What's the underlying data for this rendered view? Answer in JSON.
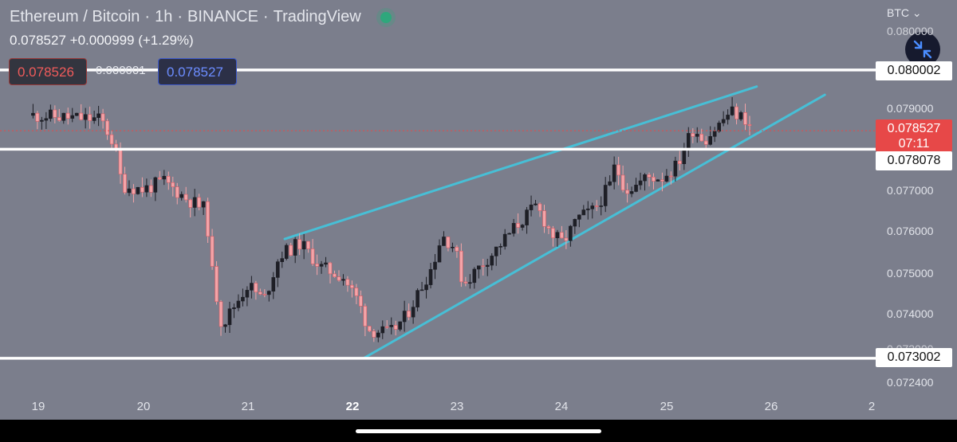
{
  "header": {
    "symbol": "Ethereum / Bitcoin",
    "interval": "1h",
    "exchange": "BINANCE",
    "platform": "TradingView",
    "sep": "·",
    "last_price": "0.078527",
    "change": "+0.000999",
    "change_pct": "(+1.29%)",
    "status_color": "#2fa77c"
  },
  "quote": {
    "sell_price": "0.078526",
    "spread": "0.000001",
    "buy_price": "0.078527"
  },
  "toolbar": {
    "currency": "BTC",
    "collapse_icon": "collapse-arrows-icon"
  },
  "price_axis": {
    "ticks": [
      "0.080000",
      "0.079000",
      "0.077000",
      "0.076000",
      "0.075000",
      "0.074000",
      "0.073000",
      "0.072400"
    ]
  },
  "level_tags": {
    "upper": "0.080002",
    "middle": "0.078078",
    "lower": "0.073002",
    "current_price": "0.078527",
    "countdown": "07:11"
  },
  "time_axis": {
    "labels": [
      {
        "text": "19",
        "bold": false
      },
      {
        "text": "20",
        "bold": false
      },
      {
        "text": "21",
        "bold": false
      },
      {
        "text": "22",
        "bold": true
      },
      {
        "text": "23",
        "bold": false
      },
      {
        "text": "24",
        "bold": false
      },
      {
        "text": "25",
        "bold": false
      },
      {
        "text": "26",
        "bold": false
      },
      {
        "text": "2",
        "bold": false
      }
    ]
  },
  "colors": {
    "background": "#7b7e8c",
    "up_candle": "#1e1f26",
    "down_candle": "#f4a4a8",
    "trendline": "#47bfd6",
    "level_line": "#ffffff",
    "current_tag": "#e74848"
  },
  "chart_data": {
    "type": "candlestick",
    "symbol": "ETHBTC",
    "interval": "1h",
    "ylim": [
      0.0722,
      0.0815
    ],
    "x_ticks": [
      "19",
      "20",
      "21",
      "22",
      "23",
      "24",
      "25",
      "26"
    ],
    "horizontal_levels": [
      0.080002,
      0.078078,
      0.073002
    ],
    "current_price": 0.078527,
    "trendlines": [
      {
        "name": "",
        "points": [
          [
            21.35,
            0.0759
          ],
          [
            25.85,
            0.0796
          ]
        ]
      },
      {
        "name": "",
        "points": [
          [
            22.1,
            0.073
          ],
          [
            26.5,
            0.0794
          ]
        ]
      }
    ],
    "anchors": [
      [
        18.95,
        0.0789
      ],
      [
        19.6,
        0.0788
      ],
      [
        19.72,
        0.0782
      ],
      [
        19.8,
        0.0772
      ],
      [
        20.0,
        0.0771
      ],
      [
        20.2,
        0.0773
      ],
      [
        20.4,
        0.0769
      ],
      [
        20.6,
        0.0766
      ],
      [
        20.65,
        0.0752
      ],
      [
        20.75,
        0.0738
      ],
      [
        20.9,
        0.0744
      ],
      [
        21.0,
        0.0748
      ],
      [
        21.15,
        0.0744
      ],
      [
        21.3,
        0.0755
      ],
      [
        21.5,
        0.0758
      ],
      [
        21.7,
        0.0752
      ],
      [
        21.9,
        0.075
      ],
      [
        22.05,
        0.0744
      ],
      [
        22.15,
        0.0737
      ],
      [
        22.35,
        0.0736
      ],
      [
        22.5,
        0.074
      ],
      [
        22.75,
        0.0752
      ],
      [
        22.85,
        0.076
      ],
      [
        22.97,
        0.0757
      ],
      [
        23.05,
        0.0748
      ],
      [
        23.2,
        0.0752
      ],
      [
        23.35,
        0.0756
      ],
      [
        23.55,
        0.0762
      ],
      [
        23.75,
        0.0767
      ],
      [
        23.9,
        0.076
      ],
      [
        24.0,
        0.0758
      ],
      [
        24.15,
        0.0764
      ],
      [
        24.3,
        0.0766
      ],
      [
        24.45,
        0.0772
      ],
      [
        24.5,
        0.0777
      ],
      [
        24.6,
        0.0771
      ],
      [
        24.7,
        0.0772
      ],
      [
        24.8,
        0.0774
      ],
      [
        24.95,
        0.0774
      ],
      [
        25.1,
        0.0777
      ],
      [
        25.15,
        0.0781
      ],
      [
        25.25,
        0.0786
      ],
      [
        25.35,
        0.0783
      ],
      [
        25.5,
        0.0787
      ],
      [
        25.6,
        0.079
      ],
      [
        25.75,
        0.0788
      ],
      [
        25.8,
        0.07853
      ]
    ],
    "title": "",
    "xlabel": "",
    "ylabel": ""
  }
}
